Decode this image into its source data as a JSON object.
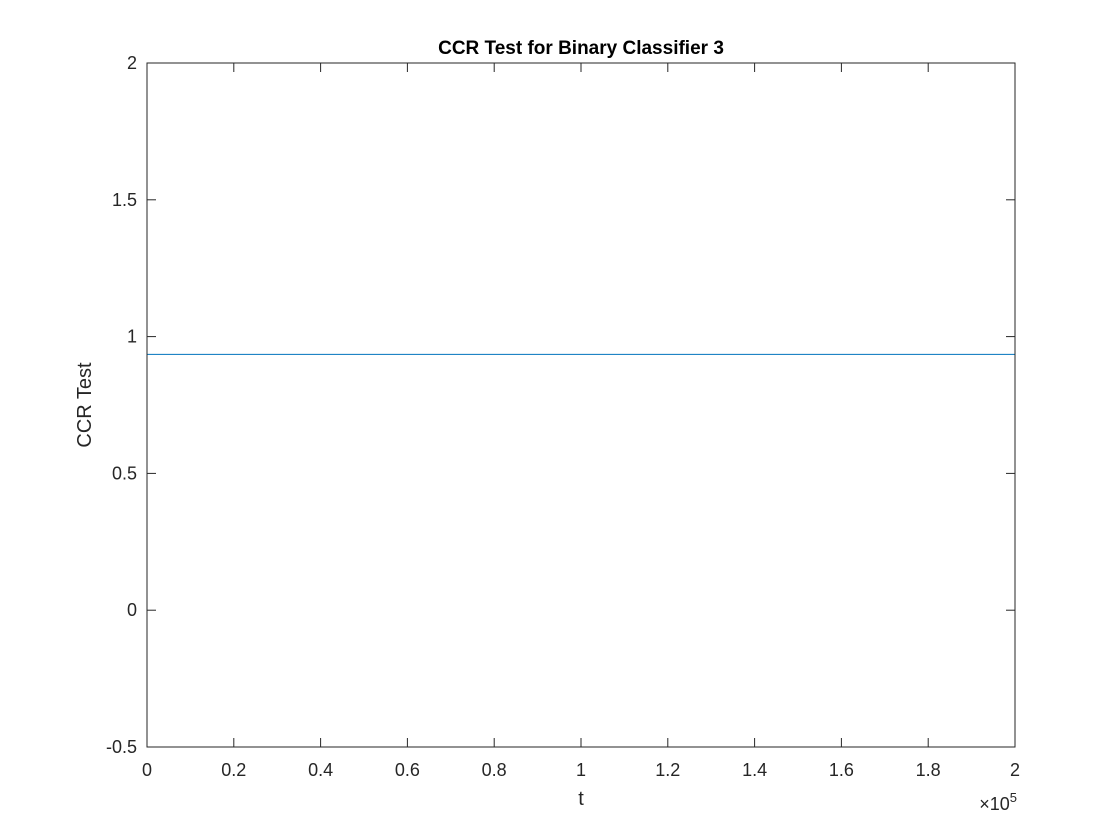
{
  "chart_data": {
    "type": "line",
    "title": "CCR Test for Binary Classifier 3",
    "xlabel": "t",
    "ylabel": "CCR Test",
    "xlim": [
      0,
      200000
    ],
    "ylim": [
      -0.5,
      2
    ],
    "x_ticks": [
      0,
      20000,
      40000,
      60000,
      80000,
      100000,
      120000,
      140000,
      160000,
      180000,
      200000
    ],
    "x_tick_labels": [
      "0",
      "0.2",
      "0.4",
      "0.6",
      "0.8",
      "1",
      "1.2",
      "1.4",
      "1.6",
      "1.8",
      "2"
    ],
    "x_exponent_label": {
      "prefix": "×10",
      "power": "5"
    },
    "y_ticks": [
      -0.5,
      0,
      0.5,
      1,
      1.5,
      2
    ],
    "y_tick_labels": [
      "-0.5",
      "0",
      "0.5",
      "1",
      "1.5",
      "2"
    ],
    "grid": false,
    "series": [
      {
        "color": "#0072BD",
        "x": [
          0,
          200000
        ],
        "y": [
          0.935,
          0.935
        ]
      }
    ]
  }
}
